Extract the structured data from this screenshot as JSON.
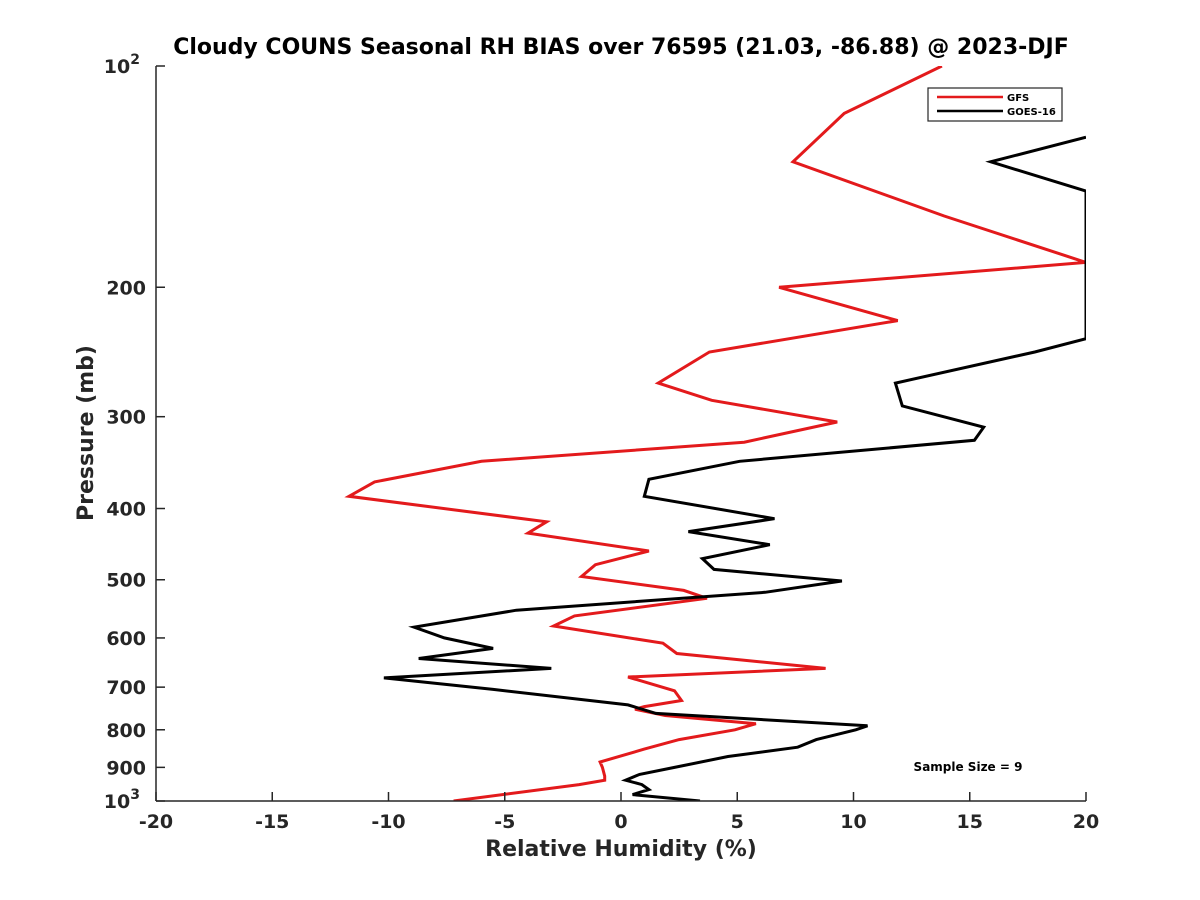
{
  "chart_data": {
    "type": "line",
    "title": "Cloudy COUNS Seasonal RH BIAS over 76595 (21.03, -86.88) @ 2023-DJF",
    "xlabel": "Relative Humidity (%)",
    "ylabel": "Pressure (mb)",
    "xlim": [
      -20,
      20
    ],
    "ylim": [
      100,
      1000
    ],
    "yscale": "log",
    "yreverse": true,
    "grid": false,
    "legend_position": "top-right",
    "x_ticks": [
      {
        "value": -20,
        "label": "-20"
      },
      {
        "value": -15,
        "label": "-15"
      },
      {
        "value": -10,
        "label": "-10"
      },
      {
        "value": -5,
        "label": "-5"
      },
      {
        "value": 0,
        "label": "0"
      },
      {
        "value": 5,
        "label": "5"
      },
      {
        "value": 10,
        "label": "10"
      },
      {
        "value": 15,
        "label": "15"
      },
      {
        "value": 20,
        "label": "20"
      }
    ],
    "y_ticks": [
      {
        "value": 100,
        "base": "10",
        "exp": "2"
      },
      {
        "value": 200,
        "base": "200",
        "exp": ""
      },
      {
        "value": 300,
        "base": "300",
        "exp": ""
      },
      {
        "value": 400,
        "base": "400",
        "exp": ""
      },
      {
        "value": 500,
        "base": "500",
        "exp": ""
      },
      {
        "value": 600,
        "base": "600",
        "exp": ""
      },
      {
        "value": 700,
        "base": "700",
        "exp": ""
      },
      {
        "value": 800,
        "base": "800",
        "exp": ""
      },
      {
        "value": 900,
        "base": "900",
        "exp": ""
      },
      {
        "value": 1000,
        "base": "10",
        "exp": "3"
      }
    ],
    "series": [
      {
        "name": "GFS",
        "color": "#e31a1c",
        "points": [
          [
            13.8,
            100
          ],
          [
            9.6,
            116
          ],
          [
            7.4,
            135
          ],
          [
            13.9,
            160
          ],
          [
            20.0,
            185
          ],
          [
            6.8,
            200
          ],
          [
            11.9,
            222
          ],
          [
            3.8,
            245
          ],
          [
            1.6,
            270
          ],
          [
            3.9,
            285
          ],
          [
            9.3,
            305
          ],
          [
            5.3,
            325
          ],
          [
            -6.0,
            345
          ],
          [
            -10.6,
            368
          ],
          [
            -11.7,
            385
          ],
          [
            -3.2,
            417
          ],
          [
            -4.0,
            432
          ],
          [
            1.2,
            457
          ],
          [
            -1.1,
            477
          ],
          [
            -1.7,
            495
          ],
          [
            2.7,
            517
          ],
          [
            3.7,
            530
          ],
          [
            -2.0,
            560
          ],
          [
            -2.9,
            578
          ],
          [
            1.8,
            610
          ],
          [
            2.4,
            630
          ],
          [
            8.8,
            660
          ],
          [
            0.3,
            678
          ],
          [
            2.3,
            708
          ],
          [
            2.6,
            730
          ],
          [
            1.0,
            744
          ],
          [
            0.6,
            750
          ],
          [
            1.9,
            765
          ],
          [
            5.8,
            785
          ],
          [
            4.9,
            800
          ],
          [
            2.5,
            825
          ],
          [
            1.0,
            850
          ],
          [
            -0.9,
            885
          ],
          [
            -0.8,
            900
          ],
          [
            -0.7,
            925
          ],
          [
            -0.7,
            937
          ],
          [
            -1.8,
            950
          ],
          [
            -7.2,
            1000
          ]
        ]
      },
      {
        "name": "GOES-16",
        "color": "#000000",
        "points": [
          [
            20.0,
            125
          ],
          [
            15.9,
            135
          ],
          [
            20.0,
            148
          ],
          [
            20.0,
            235
          ],
          [
            17.8,
            245
          ],
          [
            11.8,
            270
          ],
          [
            12.1,
            290
          ],
          [
            15.6,
            310
          ],
          [
            15.2,
            323
          ],
          [
            5.1,
            345
          ],
          [
            1.2,
            365
          ],
          [
            1.0,
            385
          ],
          [
            6.6,
            413
          ],
          [
            2.9,
            430
          ],
          [
            6.4,
            448
          ],
          [
            3.5,
            468
          ],
          [
            4.0,
            484
          ],
          [
            9.5,
            502
          ],
          [
            6.2,
            520
          ],
          [
            -4.5,
            550
          ],
          [
            -8.9,
            580
          ],
          [
            -7.6,
            600
          ],
          [
            -5.5,
            620
          ],
          [
            -8.7,
            640
          ],
          [
            -3.0,
            660
          ],
          [
            -10.2,
            680
          ],
          [
            -5.5,
            705
          ],
          [
            0.3,
            740
          ],
          [
            1.5,
            760
          ],
          [
            10.6,
            790
          ],
          [
            10.1,
            800
          ],
          [
            8.4,
            825
          ],
          [
            7.6,
            845
          ],
          [
            4.6,
            870
          ],
          [
            2.3,
            900
          ],
          [
            0.8,
            920
          ],
          [
            0.2,
            937
          ],
          [
            0.9,
            950
          ],
          [
            1.2,
            965
          ],
          [
            0.5,
            980
          ],
          [
            3.4,
            1000
          ]
        ]
      }
    ],
    "legend": [
      {
        "label": "GFS",
        "color": "#e31a1c"
      },
      {
        "label": "GOES-16",
        "color": "#000000"
      }
    ],
    "annotation": "Sample Size = 9"
  }
}
